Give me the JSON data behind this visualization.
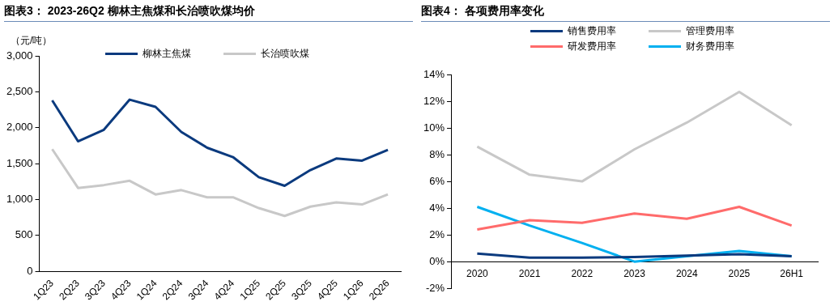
{
  "chart_data": [
    {
      "type": "line",
      "title": "图表3：  2023-26Q2 柳林主焦煤和长治喷吹煤均价",
      "ylabel": "（元/吨）",
      "categories": [
        "1Q23",
        "2Q23",
        "3Q23",
        "4Q23",
        "1Q24",
        "2Q24",
        "3Q24",
        "4Q24",
        "1Q25",
        "2Q25",
        "3Q25",
        "4Q25",
        "1Q26",
        "2Q26"
      ],
      "series": [
        {
          "name": "柳林主焦煤",
          "color": "#0b3a7e",
          "values": [
            2380,
            1810,
            1970,
            2390,
            2290,
            1940,
            1720,
            1590,
            1310,
            1190,
            1410,
            1570,
            1540,
            1690
          ]
        },
        {
          "name": "长治喷吹煤",
          "color": "#c8c8c8",
          "values": [
            1700,
            1160,
            1200,
            1260,
            1070,
            1130,
            1030,
            1030,
            880,
            770,
            900,
            960,
            930,
            1070
          ]
        }
      ],
      "ylim": [
        0,
        3000
      ],
      "yticks": [
        {
          "value": 0,
          "label": "0"
        },
        {
          "value": 500,
          "label": "500"
        },
        {
          "value": 1000,
          "label": "1,000"
        },
        {
          "value": 1500,
          "label": "1,500"
        },
        {
          "value": 2000,
          "label": "2,000"
        },
        {
          "value": 2500,
          "label": "2,500"
        },
        {
          "value": 3000,
          "label": "3,000"
        }
      ],
      "grid": false,
      "legend": "top",
      "marker": "none",
      "line_style": "solid"
    },
    {
      "type": "line",
      "title": "图表4：  各项费用率变化",
      "categories": [
        "2020",
        "2021",
        "2022",
        "2023",
        "2024",
        "2025",
        "26H1"
      ],
      "series": [
        {
          "name": "销售费用率",
          "color": "#0b3a7e",
          "values": [
            0.6,
            0.3,
            0.3,
            0.35,
            0.45,
            0.55,
            0.4
          ]
        },
        {
          "name": "管理费用率",
          "color": "#c8c8c8",
          "values": [
            8.6,
            6.5,
            6.0,
            8.4,
            10.4,
            12.7,
            10.2
          ]
        },
        {
          "name": "研发费用率",
          "color": "#ff6b6b",
          "values": [
            2.4,
            3.1,
            2.9,
            3.6,
            3.2,
            4.1,
            2.7
          ]
        },
        {
          "name": "财务费用率",
          "color": "#00b0f0",
          "values": [
            4.1,
            2.7,
            1.4,
            0,
            0.4,
            0.8,
            0.4
          ]
        }
      ],
      "ylim": [
        -2,
        14
      ],
      "yticks": [
        {
          "value": -2,
          "label": "-2%"
        },
        {
          "value": 0,
          "label": "0%"
        },
        {
          "value": 2,
          "label": "2%"
        },
        {
          "value": 4,
          "label": "4%"
        },
        {
          "value": 6,
          "label": "6%"
        },
        {
          "value": 8,
          "label": "8%"
        },
        {
          "value": 10,
          "label": "10%"
        },
        {
          "value": 12,
          "label": "12%"
        },
        {
          "value": 14,
          "label": "14%"
        }
      ],
      "grid": false,
      "legend": "top",
      "marker": "none",
      "line_style": "solid"
    }
  ]
}
